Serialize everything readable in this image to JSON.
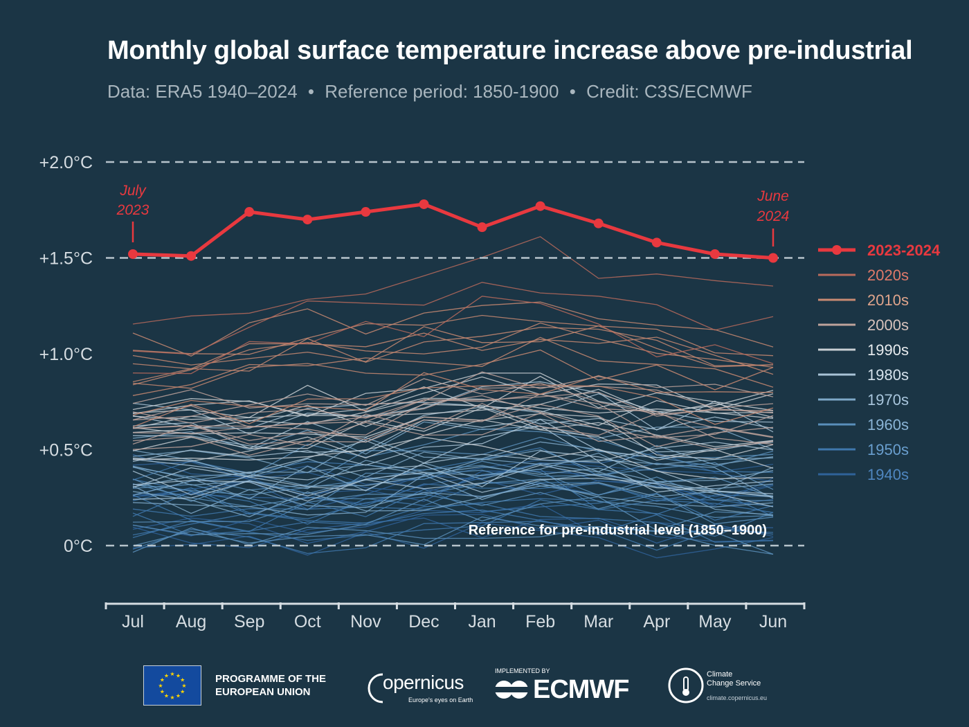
{
  "title": "Monthly global surface temperature increase above pre-industrial",
  "subtitle": {
    "data": "Data: ERA5 1940–2024",
    "separator": "•",
    "reference": "Reference period: 1850-1900",
    "credit": "Credit: C3S/ECMWF"
  },
  "chart_data": {
    "type": "line",
    "title": "Monthly global surface temperature increase above pre-industrial",
    "xlabel": "",
    "ylabel": "",
    "categories": [
      "Jul",
      "Aug",
      "Sep",
      "Oct",
      "Nov",
      "Dec",
      "Jan",
      "Feb",
      "Mar",
      "Apr",
      "May",
      "Jun"
    ],
    "ylim": [
      -0.3,
      2.0
    ],
    "y_ticks": [
      0,
      0.5,
      1.0,
      1.5,
      2.0
    ],
    "y_tick_labels": [
      "0°C",
      "+0.5°C",
      "+1.0°C",
      "+1.5°C",
      "+2.0°C"
    ],
    "reference_lines": [
      0,
      1.5,
      2.0
    ],
    "reference_label": "Reference for pre-industrial level (1850–1900)",
    "highlight": {
      "name": "2023-2024",
      "color": "#e8393f",
      "values": [
        1.52,
        1.51,
        1.74,
        1.7,
        1.74,
        1.78,
        1.66,
        1.77,
        1.68,
        1.58,
        1.52,
        1.5
      ],
      "annotations": [
        {
          "text": "July",
          "text2": "2023"
        },
        {
          "text": "June",
          "text2": "2024"
        }
      ]
    },
    "decades": [
      {
        "name": "2020s",
        "color": "#b96a5c",
        "base": [
          1.15,
          1.12,
          1.18,
          1.25,
          1.28,
          1.35,
          1.4,
          1.45,
          1.35,
          1.25,
          1.22,
          1.2
        ],
        "years": 3
      },
      {
        "name": "2010s",
        "color": "#c98a72",
        "base": [
          0.88,
          0.86,
          0.9,
          0.95,
          0.97,
          1.0,
          1.02,
          1.05,
          1.0,
          0.95,
          0.92,
          0.9
        ],
        "years": 10
      },
      {
        "name": "2000s",
        "color": "#bfa39c",
        "base": [
          0.72,
          0.7,
          0.72,
          0.74,
          0.76,
          0.8,
          0.82,
          0.85,
          0.8,
          0.76,
          0.73,
          0.72
        ],
        "years": 10
      },
      {
        "name": "1990s",
        "color": "#c9cfd4",
        "base": [
          0.58,
          0.56,
          0.56,
          0.58,
          0.6,
          0.64,
          0.66,
          0.68,
          0.64,
          0.6,
          0.58,
          0.57
        ],
        "years": 10
      },
      {
        "name": "1980s",
        "color": "#a9c3d6",
        "base": [
          0.45,
          0.43,
          0.42,
          0.44,
          0.46,
          0.5,
          0.52,
          0.55,
          0.5,
          0.47,
          0.45,
          0.44
        ],
        "years": 10
      },
      {
        "name": "1970s",
        "color": "#7ea8c8",
        "base": [
          0.33,
          0.31,
          0.3,
          0.32,
          0.34,
          0.38,
          0.4,
          0.42,
          0.38,
          0.35,
          0.33,
          0.32
        ],
        "years": 10
      },
      {
        "name": "1960s",
        "color": "#5a8fbb",
        "base": [
          0.25,
          0.23,
          0.22,
          0.23,
          0.25,
          0.28,
          0.3,
          0.32,
          0.28,
          0.26,
          0.24,
          0.23
        ],
        "years": 10
      },
      {
        "name": "1950s",
        "color": "#3f78ad",
        "base": [
          0.2,
          0.18,
          0.16,
          0.17,
          0.19,
          0.22,
          0.24,
          0.26,
          0.22,
          0.2,
          0.19,
          0.18
        ],
        "years": 10
      },
      {
        "name": "1940s",
        "color": "#2f6299",
        "base": [
          0.22,
          0.2,
          0.18,
          0.17,
          0.19,
          0.22,
          0.25,
          0.28,
          0.24,
          0.21,
          0.2,
          0.19
        ],
        "years": 10
      }
    ],
    "legend": [
      {
        "name": "2023-2024",
        "color": "#e8393f",
        "text_color": "#e8393f"
      },
      {
        "name": "2020s",
        "color": "#b96a5c",
        "text_color": "#e07a6a"
      },
      {
        "name": "2010s",
        "color": "#c98a72",
        "text_color": "#e0a58c"
      },
      {
        "name": "2000s",
        "color": "#bfa39c",
        "text_color": "#d8c3bd"
      },
      {
        "name": "1990s",
        "color": "#c9cfd4",
        "text_color": "#e8ecef"
      },
      {
        "name": "1980s",
        "color": "#a9c3d6",
        "text_color": "#d5e2ec"
      },
      {
        "name": "1970s",
        "color": "#7ea8c8",
        "text_color": "#a9c6dd"
      },
      {
        "name": "1960s",
        "color": "#5a8fbb",
        "text_color": "#8ab4d6"
      },
      {
        "name": "1950s",
        "color": "#3f78ad",
        "text_color": "#6a9fcf"
      },
      {
        "name": "1940s",
        "color": "#2f6299",
        "text_color": "#4f86c0"
      }
    ]
  },
  "footer": {
    "eu_line1": "PROGRAMME OF THE",
    "eu_line2": "EUROPEAN UNION",
    "copernicus": "opernicus",
    "copernicus_tag": "Europe's eyes on Earth",
    "ecmwf_implemented": "IMPLEMENTED BY",
    "ecmwf": "ECMWF",
    "ccs_line1": "Climate",
    "ccs_line2": "Change Service",
    "ccs_url": "climate.copernicus.eu"
  }
}
